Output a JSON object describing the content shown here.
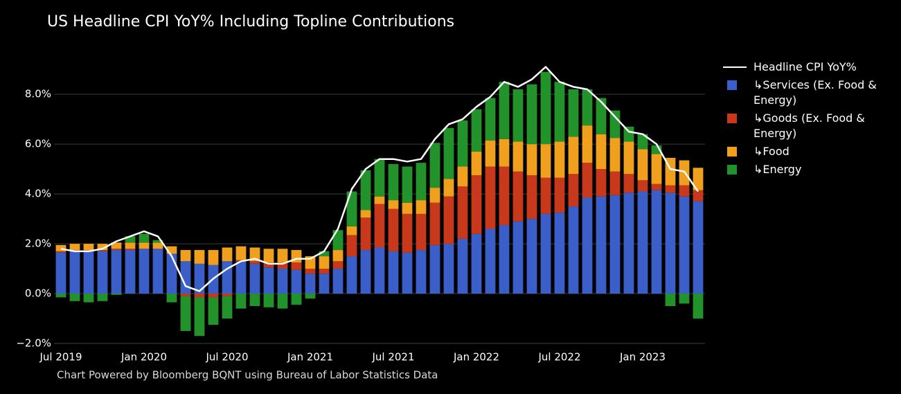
{
  "chart_data": {
    "type": "bar",
    "title": "US Headline CPI YoY% Including Topline Contributions",
    "footer": "Chart Powered by Bloomberg BQNT using Bureau of Labor Statistics Data",
    "categories": [
      "Jul 2019",
      null,
      null,
      null,
      null,
      null,
      "Jan 2020",
      null,
      null,
      null,
      null,
      null,
      "Jul 2020",
      null,
      null,
      null,
      null,
      null,
      "Jan 2021",
      null,
      null,
      null,
      null,
      null,
      "Jul 2021",
      null,
      null,
      null,
      null,
      null,
      "Jan 2022",
      null,
      null,
      null,
      null,
      null,
      "Jul 2022",
      null,
      null,
      null,
      null,
      null,
      "Jan 2023",
      null,
      null,
      null,
      null
    ],
    "ylim": [
      -2,
      9.7
    ],
    "yticks": [
      {
        "value": -2,
        "label": "−2.0%"
      },
      {
        "value": 0,
        "label": "0.0%"
      },
      {
        "value": 2,
        "label": "2.0%"
      },
      {
        "value": 4,
        "label": "4.0%"
      },
      {
        "value": 6,
        "label": "6.0%"
      },
      {
        "value": 8,
        "label": "8.0%"
      }
    ],
    "grid": true,
    "legend": "right",
    "series": [
      {
        "name": "Headline CPI YoY%",
        "type": "line",
        "color": "#ffffff",
        "values": [
          1.8,
          1.7,
          1.7,
          1.8,
          2.1,
          2.3,
          2.5,
          2.3,
          1.5,
          0.3,
          0.1,
          0.6,
          1.0,
          1.3,
          1.4,
          1.2,
          1.2,
          1.4,
          1.4,
          1.7,
          2.6,
          4.2,
          5.0,
          5.4,
          5.4,
          5.3,
          5.4,
          6.2,
          6.8,
          7.0,
          7.5,
          7.9,
          8.5,
          8.3,
          8.6,
          9.1,
          8.5,
          8.3,
          8.2,
          7.7,
          7.1,
          6.5,
          6.4,
          6.0,
          5.0,
          4.9,
          4.1
        ]
      },
      {
        "name": "↳Services (Ex. Food & Energy)",
        "type": "bar",
        "color": "#3a5fc8",
        "values": [
          1.65,
          1.7,
          1.7,
          1.7,
          1.75,
          1.75,
          1.8,
          1.8,
          1.6,
          1.3,
          1.2,
          1.15,
          1.3,
          1.3,
          1.2,
          1.05,
          1.0,
          0.95,
          0.8,
          0.8,
          1.0,
          1.5,
          1.75,
          1.85,
          1.7,
          1.65,
          1.75,
          1.95,
          2.0,
          2.2,
          2.4,
          2.6,
          2.75,
          2.9,
          3.0,
          3.2,
          3.25,
          3.5,
          3.85,
          3.9,
          3.95,
          4.05,
          4.1,
          4.15,
          4.05,
          3.9,
          3.7
        ]
      },
      {
        "name": "↳Goods (Ex. Food & Energy)",
        "type": "bar",
        "color": "#c8381b",
        "values": [
          0.05,
          0.05,
          0.05,
          0.05,
          0.05,
          0.05,
          0.0,
          0.0,
          0.0,
          -0.1,
          -0.15,
          -0.15,
          -0.1,
          0.05,
          0.1,
          0.2,
          0.25,
          0.3,
          0.2,
          0.2,
          0.3,
          0.85,
          1.3,
          1.75,
          1.7,
          1.55,
          1.45,
          1.7,
          1.9,
          2.1,
          2.35,
          2.5,
          2.35,
          2.0,
          1.75,
          1.45,
          1.4,
          1.3,
          1.4,
          1.1,
          0.95,
          0.75,
          0.45,
          0.25,
          0.3,
          0.45,
          0.45
        ]
      },
      {
        "name": "↳Food",
        "type": "bar",
        "color": "#f0a01c",
        "values": [
          0.25,
          0.25,
          0.25,
          0.25,
          0.25,
          0.25,
          0.25,
          0.25,
          0.3,
          0.45,
          0.55,
          0.6,
          0.55,
          0.55,
          0.55,
          0.55,
          0.55,
          0.5,
          0.5,
          0.5,
          0.45,
          0.35,
          0.3,
          0.3,
          0.35,
          0.45,
          0.55,
          0.6,
          0.7,
          0.8,
          0.95,
          1.05,
          1.1,
          1.2,
          1.25,
          1.35,
          1.45,
          1.5,
          1.5,
          1.4,
          1.35,
          1.3,
          1.25,
          1.2,
          1.1,
          1.0,
          0.9
        ]
      },
      {
        "name": "↳Energy",
        "type": "bar",
        "color": "#22922a",
        "values": [
          -0.15,
          -0.3,
          -0.35,
          -0.3,
          -0.05,
          0.25,
          0.35,
          0.1,
          -0.35,
          -1.4,
          -1.55,
          -1.1,
          -0.9,
          -0.6,
          -0.5,
          -0.55,
          -0.6,
          -0.45,
          -0.2,
          0.2,
          0.8,
          1.4,
          1.6,
          1.5,
          1.45,
          1.45,
          1.5,
          1.8,
          2.05,
          1.85,
          1.7,
          1.7,
          2.3,
          2.1,
          2.4,
          2.9,
          2.4,
          1.9,
          1.45,
          1.45,
          1.1,
          0.6,
          0.6,
          0.35,
          -0.5,
          -0.4,
          -1.0
        ]
      }
    ]
  }
}
